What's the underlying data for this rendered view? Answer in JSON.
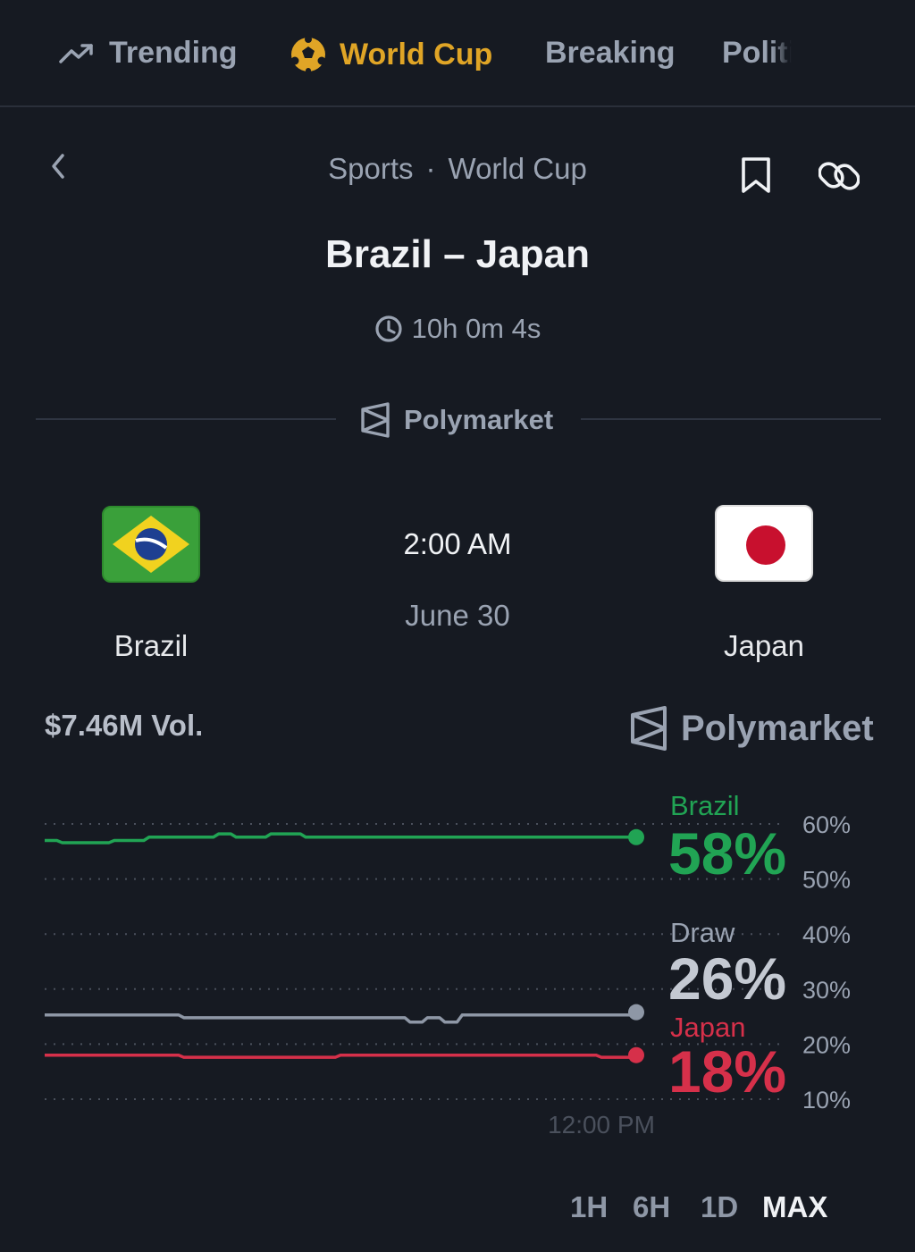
{
  "nav": {
    "items": [
      {
        "label": "Trending",
        "icon": "trending-up-icon"
      },
      {
        "label": "World Cup",
        "icon": "soccer-ball-icon",
        "active": true
      },
      {
        "label": "Breaking"
      },
      {
        "label": "Politics"
      }
    ],
    "accent_color": "#e0a526"
  },
  "breadcrumb": {
    "category": "Sports",
    "separator": "·",
    "subcategory": "World Cup"
  },
  "event": {
    "title": "Brazil – Japan",
    "countdown": "10h 0m 4s",
    "provider": "Polymarket",
    "kickoff_time": "2:00 AM",
    "kickoff_date": "June 30",
    "home_team": "Brazil",
    "away_team": "Japan",
    "volume": "$7.46M Vol."
  },
  "chart_data": {
    "type": "line",
    "x_tick_labels": [
      "12:00 PM"
    ],
    "y_ticks": [
      "60%",
      "50%",
      "40%",
      "30%",
      "20%",
      "10%"
    ],
    "ylim": [
      10,
      60
    ],
    "series": [
      {
        "name": "Brazil",
        "label_value": "58%",
        "color": "#21a454",
        "values": [
          57,
          56.6,
          56.6,
          56.6,
          57,
          57,
          57.6,
          57.6,
          57.6,
          57.6,
          58.2,
          57.6,
          57.6,
          58.2,
          58.2,
          57.6,
          57.6,
          57.6,
          57.6,
          57.6,
          57.6,
          57.6,
          57.6,
          57.6,
          57.6,
          57.6,
          57.6,
          57.6,
          57.6,
          57.6,
          57.6,
          57.6,
          57.6,
          57.6,
          57.6
        ]
      },
      {
        "name": "Draw",
        "label_value": "26%",
        "color": "#8e97a6",
        "values": [
          25.3,
          25.3,
          25.3,
          25.3,
          25.3,
          25.3,
          25.3,
          25.3,
          24.8,
          24.8,
          24.8,
          24.8,
          24.8,
          24.8,
          24.8,
          24.8,
          24.8,
          24.8,
          24.8,
          24.8,
          24.8,
          24,
          24.8,
          24,
          25.3,
          25.3,
          25.3,
          25.3,
          25.3,
          25.3,
          25.3,
          25.3,
          25.3,
          25.3,
          25.8
        ]
      },
      {
        "name": "Japan",
        "label_value": "18%",
        "color": "#d6304a",
        "values": [
          18,
          18,
          18,
          18,
          18,
          18,
          18,
          18,
          17.6,
          17.6,
          17.6,
          17.6,
          17.6,
          17.6,
          17.6,
          17.6,
          17.6,
          18,
          18,
          18,
          18,
          18,
          18,
          18,
          18,
          18,
          18,
          18,
          18,
          18,
          18,
          18,
          17.6,
          17.6,
          18
        ]
      }
    ]
  },
  "range_tabs": [
    {
      "label": "1H"
    },
    {
      "label": "6H"
    },
    {
      "label": "1D"
    },
    {
      "label": "MAX",
      "active": true
    }
  ]
}
